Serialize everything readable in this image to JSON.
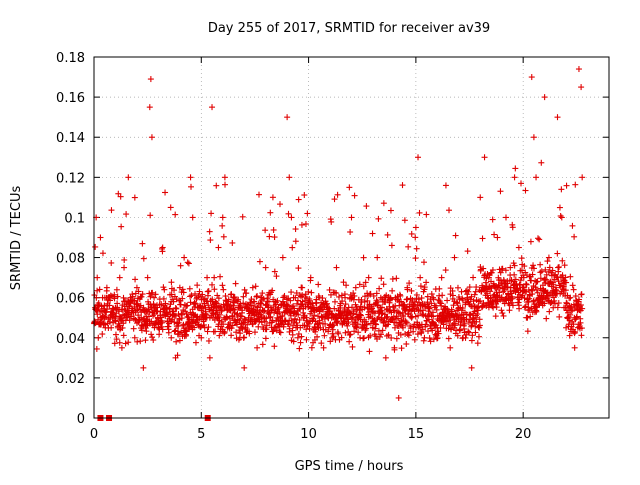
{
  "chart_data": {
    "type": "scatter",
    "title": "Day 255 of 2017, SRMTID for receiver av39",
    "xlabel": "GPS time / hours",
    "ylabel": "SRMTID / TECUs",
    "xlim": [
      0,
      24
    ],
    "ylim": [
      0,
      0.18
    ],
    "xticks": [
      0,
      5,
      10,
      15,
      20
    ],
    "xtick_labels": [
      "0",
      "5",
      "10",
      "15",
      "20"
    ],
    "yticks": [
      0,
      0.02,
      0.04,
      0.06,
      0.08,
      0.1,
      0.12,
      0.14,
      0.16,
      0.18
    ],
    "ytick_labels": [
      "0",
      "0.02",
      "0.04",
      "0.06",
      "0.08",
      "0.1",
      "0.12",
      "0.14",
      "0.16",
      "0.18"
    ],
    "grid": true,
    "marker": "plus",
    "color": "#e00000",
    "data_range_hours": [
      0,
      22.75
    ],
    "series": [
      {
        "name": "SRMTID",
        "points": [
          [
            0.05,
            0.055
          ],
          [
            0.1,
            0.1
          ],
          [
            0.15,
            0.07
          ],
          [
            0.2,
            0.04
          ],
          [
            0.3,
            0.09
          ],
          [
            0.4,
            0.06
          ],
          [
            0.5,
            0.05
          ],
          [
            0.6,
            0.065
          ],
          [
            0.8,
            0.045
          ],
          [
            1.0,
            0.055
          ],
          [
            1.2,
            0.07
          ],
          [
            1.3,
            0.035
          ],
          [
            1.4,
            0.075
          ],
          [
            1.5,
            0.05
          ],
          [
            1.6,
            0.12
          ],
          [
            1.7,
            0.06
          ],
          [
            1.9,
            0.04
          ],
          [
            2.0,
            0.065
          ],
          [
            2.2,
            0.05
          ],
          [
            2.3,
            0.025
          ],
          [
            2.5,
            0.07
          ],
          [
            2.6,
            0.155
          ],
          [
            2.65,
            0.169
          ],
          [
            2.7,
            0.14
          ],
          [
            2.8,
            0.06
          ],
          [
            3.0,
            0.045
          ],
          [
            3.2,
            0.085
          ],
          [
            3.4,
            0.055
          ],
          [
            3.6,
            0.04
          ],
          [
            3.8,
            0.03
          ],
          [
            4.0,
            0.065
          ],
          [
            4.2,
            0.08
          ],
          [
            4.4,
            0.05
          ],
          [
            4.5,
            0.12
          ],
          [
            4.6,
            0.1
          ],
          [
            4.8,
            0.06
          ],
          [
            5.0,
            0.04
          ],
          [
            5.2,
            0.055
          ],
          [
            5.4,
            0.03
          ],
          [
            5.5,
            0.155
          ],
          [
            5.6,
            0.07
          ],
          [
            5.8,
            0.085
          ],
          [
            6.0,
            0.1
          ],
          [
            6.1,
            0.12
          ],
          [
            6.2,
            0.05
          ],
          [
            6.5,
            0.06
          ],
          [
            6.8,
            0.04
          ],
          [
            7.0,
            0.025
          ],
          [
            7.2,
            0.05
          ],
          [
            7.4,
            0.065
          ],
          [
            7.6,
            0.035
          ],
          [
            7.8,
            0.06
          ],
          [
            8.0,
            0.075
          ],
          [
            8.2,
            0.05
          ],
          [
            8.4,
            0.045
          ],
          [
            8.6,
            0.055
          ],
          [
            8.8,
            0.08
          ],
          [
            9.0,
            0.15
          ],
          [
            9.1,
            0.12
          ],
          [
            9.2,
            0.1
          ],
          [
            9.3,
            0.06
          ],
          [
            9.5,
            0.04
          ],
          [
            9.7,
            0.065
          ],
          [
            9.9,
            0.05
          ],
          [
            10.1,
            0.07
          ],
          [
            10.3,
            0.045
          ],
          [
            10.5,
            0.06
          ],
          [
            10.7,
            0.035
          ],
          [
            10.9,
            0.055
          ],
          [
            11.1,
            0.04
          ],
          [
            11.3,
            0.075
          ],
          [
            11.5,
            0.05
          ],
          [
            11.7,
            0.06
          ],
          [
            11.9,
            0.115
          ],
          [
            12.0,
            0.1
          ],
          [
            12.2,
            0.065
          ],
          [
            12.4,
            0.04
          ],
          [
            12.6,
            0.055
          ],
          [
            12.8,
            0.07
          ],
          [
            13.0,
            0.045
          ],
          [
            13.2,
            0.08
          ],
          [
            13.4,
            0.05
          ],
          [
            13.6,
            0.03
          ],
          [
            13.8,
            0.06
          ],
          [
            14.0,
            0.035
          ],
          [
            14.2,
            0.01
          ],
          [
            14.4,
            0.045
          ],
          [
            14.6,
            0.065
          ],
          [
            14.8,
            0.05
          ],
          [
            15.0,
            0.095
          ],
          [
            15.1,
            0.13
          ],
          [
            15.2,
            0.07
          ],
          [
            15.4,
            0.04
          ],
          [
            15.6,
            0.055
          ],
          [
            15.8,
            0.06
          ],
          [
            16.0,
            0.045
          ],
          [
            16.2,
            0.07
          ],
          [
            16.4,
            0.05
          ],
          [
            16.6,
            0.035
          ],
          [
            16.8,
            0.08
          ],
          [
            17.0,
            0.055
          ],
          [
            17.2,
            0.04
          ],
          [
            17.4,
            0.06
          ],
          [
            17.6,
            0.025
          ],
          [
            17.8,
            0.05
          ],
          [
            18.0,
            0.11
          ],
          [
            18.2,
            0.13
          ],
          [
            18.4,
            0.07
          ],
          [
            18.6,
            0.055
          ],
          [
            18.8,
            0.09
          ],
          [
            19.0,
            0.06
          ],
          [
            19.2,
            0.1
          ],
          [
            19.4,
            0.075
          ],
          [
            19.6,
            0.12
          ],
          [
            19.8,
            0.085
          ],
          [
            20.0,
            0.065
          ],
          [
            20.2,
            0.05
          ],
          [
            20.4,
            0.17
          ],
          [
            20.5,
            0.14
          ],
          [
            20.6,
            0.12
          ],
          [
            20.8,
            0.06
          ],
          [
            21.0,
            0.16
          ],
          [
            21.2,
            0.08
          ],
          [
            21.4,
            0.055
          ],
          [
            21.6,
            0.15
          ],
          [
            21.8,
            0.1
          ],
          [
            22.0,
            0.045
          ],
          [
            22.2,
            0.06
          ],
          [
            22.4,
            0.035
          ],
          [
            22.6,
            0.174
          ],
          [
            22.7,
            0.165
          ],
          [
            22.75,
            0.12
          ]
        ]
      }
    ],
    "zero_points_hours": [
      0.3,
      0.7,
      5.3
    ]
  }
}
